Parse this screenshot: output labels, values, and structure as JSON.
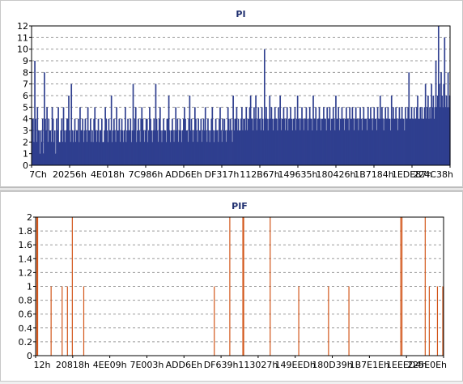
{
  "chart_data": [
    {
      "type": "bar",
      "title": "PI",
      "ylim": [
        0,
        12
      ],
      "yticks": [
        "0",
        "1",
        "2",
        "3",
        "4",
        "5",
        "6",
        "7",
        "8",
        "9",
        "10",
        "11",
        "12"
      ],
      "xticklabels": [
        "7Ch",
        "20256h",
        "4E018h",
        "7C986h",
        "ADD6Eh",
        "DF317h",
        "112B67h",
        "149635h",
        "180426h",
        "1B7184h",
        "1EDE87h",
        "224C38h"
      ],
      "grid": "horizontal dashed",
      "color": "#2f3f8f",
      "values": [
        4,
        4,
        2,
        9,
        4,
        2,
        5,
        3,
        3,
        1,
        3,
        2,
        4,
        1,
        8,
        4,
        3,
        5,
        2,
        4,
        3,
        3,
        2,
        5,
        4,
        2,
        3,
        1,
        4,
        3,
        5,
        2,
        2,
        3,
        4,
        2,
        5,
        3,
        2,
        3,
        4,
        4,
        6,
        3,
        2,
        7,
        3,
        2,
        3,
        4,
        2,
        3,
        3,
        4,
        2,
        5,
        3,
        3,
        4,
        2,
        3,
        4,
        3,
        2,
        5,
        3,
        3,
        4,
        2,
        3,
        2,
        4,
        5,
        3,
        2,
        3,
        4,
        2,
        3,
        3,
        4,
        2,
        2,
        3,
        5,
        4,
        3,
        2,
        4,
        3,
        3,
        6,
        2,
        3,
        4,
        3,
        2,
        5,
        3,
        3,
        4,
        2,
        3,
        4,
        3,
        2,
        3,
        5,
        2,
        3,
        4,
        3,
        3,
        4,
        2,
        3,
        7,
        3,
        4,
        5,
        2,
        3,
        4,
        3,
        2,
        4,
        5,
        4,
        3,
        2,
        3,
        4,
        4,
        2,
        3,
        5,
        4,
        3,
        2,
        3,
        4,
        3,
        7,
        4,
        3,
        2,
        4,
        5,
        3,
        2,
        3,
        4,
        3,
        3,
        2,
        4,
        4,
        6,
        3,
        2,
        3,
        4,
        3,
        2,
        3,
        5,
        3,
        4,
        2,
        3,
        4,
        3,
        2,
        3,
        4,
        5,
        4,
        3,
        3,
        2,
        4,
        6,
        3,
        4,
        3,
        2,
        3,
        5,
        4,
        3,
        2,
        4,
        3,
        3,
        4,
        2,
        3,
        4,
        3,
        5,
        3,
        2,
        4,
        3,
        2,
        3,
        4,
        5,
        3,
        2,
        3,
        4,
        3,
        3,
        2,
        4,
        5,
        3,
        2,
        4,
        3,
        4,
        3,
        2,
        3,
        5,
        4,
        3,
        4,
        3,
        2,
        6,
        3,
        4,
        4,
        5,
        3,
        4,
        3,
        3,
        4,
        5,
        3,
        4,
        4,
        3,
        5,
        3,
        4,
        4,
        5,
        6,
        4,
        4,
        3,
        5,
        4,
        6,
        3,
        4,
        5,
        4,
        4,
        3,
        5,
        4,
        3,
        10,
        4,
        5,
        4,
        3,
        4,
        6,
        4,
        5,
        4,
        3,
        4,
        5,
        4,
        4,
        3,
        5,
        4,
        6,
        3,
        4,
        4,
        5,
        4,
        3,
        4,
        5,
        3,
        4,
        4,
        5,
        4,
        3,
        4,
        4,
        5,
        3,
        4,
        6,
        4,
        4,
        3,
        4,
        5,
        4,
        3,
        4,
        4,
        5,
        4,
        3,
        4,
        5,
        4,
        4,
        3,
        6,
        4,
        4,
        5,
        3,
        4,
        4,
        5,
        4,
        3,
        4,
        4,
        5,
        4,
        4,
        3,
        5,
        4,
        4,
        5,
        3,
        4,
        4,
        5,
        4,
        3,
        6,
        4,
        4,
        5,
        3,
        4,
        4,
        5,
        4,
        4,
        3,
        4,
        5,
        4,
        4,
        3,
        5,
        4,
        4,
        5,
        4,
        3,
        4,
        5,
        4,
        4,
        3,
        4,
        5,
        4,
        3,
        4,
        5,
        4,
        4,
        4,
        3,
        5,
        4,
        4,
        5,
        4,
        3,
        4,
        5,
        4,
        4,
        3,
        5,
        4,
        4,
        6,
        4,
        5,
        4,
        3,
        4,
        5,
        4,
        4,
        5,
        4,
        4,
        3,
        6,
        4,
        5,
        4,
        4,
        5,
        4,
        3,
        4,
        5,
        4,
        4,
        5,
        4,
        4,
        3,
        5,
        4,
        4,
        5,
        8,
        4,
        4,
        5,
        4,
        4,
        5,
        4,
        4,
        5,
        6,
        4,
        4,
        5,
        4,
        5,
        4,
        4,
        5,
        7,
        4,
        5,
        6,
        4,
        5,
        4,
        7,
        5,
        6,
        4,
        5,
        9,
        5,
        6,
        12,
        7,
        5,
        8,
        6,
        5,
        7,
        11,
        5,
        6,
        5,
        8,
        5,
        6
      ]
    },
    {
      "type": "bar",
      "title": "PIF",
      "ylim": [
        0,
        2
      ],
      "yticks": [
        "0",
        "0.2",
        "0.4",
        "0.6",
        "0.8",
        "1",
        "1.2",
        "1.4",
        "1.6",
        "1.8",
        "2"
      ],
      "xticklabels": [
        "12h",
        "20818h",
        "4EE09h",
        "7E003h",
        "ADD6Eh",
        "DF639h",
        "113027h",
        "149EEDh",
        "180D39h",
        "1B7E1Eh",
        "1EEED4h",
        "225E0Eh"
      ],
      "grid": "horizontal dashed",
      "color": "#d2561a",
      "x_range": [
        0,
        1000
      ],
      "spikes": [
        {
          "x": 3,
          "value": 2
        },
        {
          "x": 5,
          "value": 2
        },
        {
          "x": 38,
          "value": 1
        },
        {
          "x": 65,
          "value": 1
        },
        {
          "x": 78,
          "value": 1
        },
        {
          "x": 90,
          "value": 2
        },
        {
          "x": 118,
          "value": 1
        },
        {
          "x": 438,
          "value": 1
        },
        {
          "x": 476,
          "value": 2
        },
        {
          "x": 508,
          "value": 2
        },
        {
          "x": 510,
          "value": 2
        },
        {
          "x": 575,
          "value": 2
        },
        {
          "x": 645,
          "value": 1
        },
        {
          "x": 718,
          "value": 1
        },
        {
          "x": 768,
          "value": 1
        },
        {
          "x": 895,
          "value": 2
        },
        {
          "x": 898,
          "value": 2
        },
        {
          "x": 955,
          "value": 2
        },
        {
          "x": 965,
          "value": 1
        },
        {
          "x": 985,
          "value": 1
        },
        {
          "x": 998,
          "value": 1
        }
      ]
    }
  ]
}
